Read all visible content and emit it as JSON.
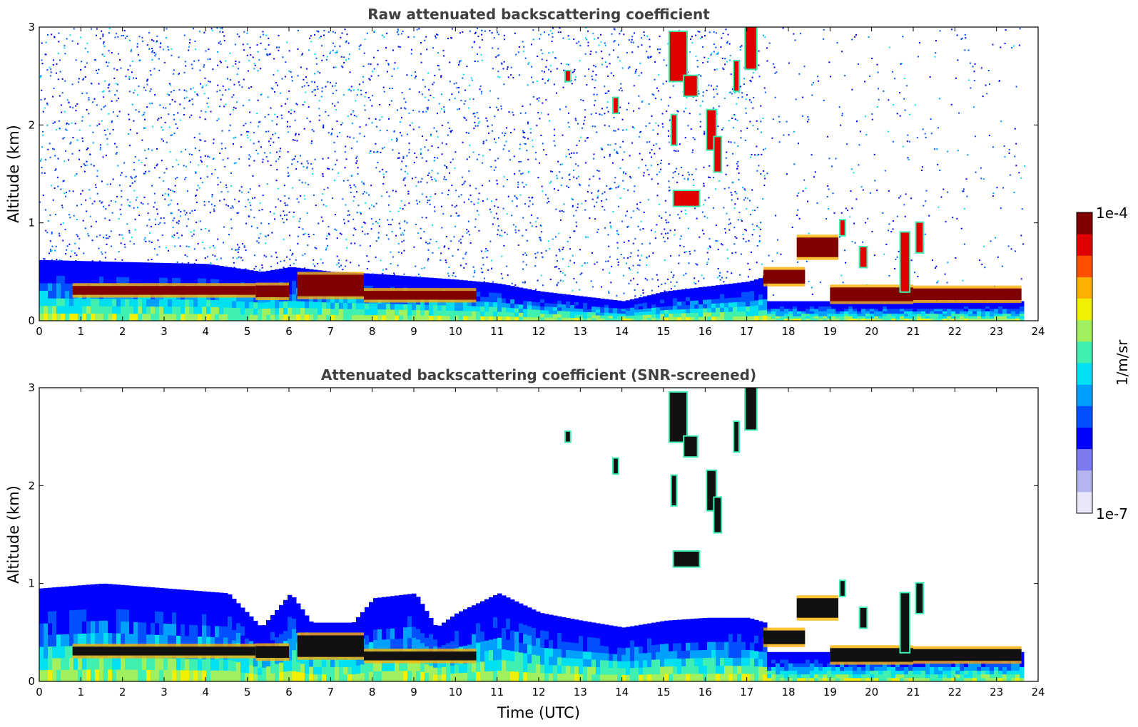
{
  "chart_data": [
    {
      "type": "heatmap",
      "title": "Raw attenuated backscattering coefficient",
      "xlabel": "",
      "ylabel": "Altitude (km)",
      "xlim": [
        0,
        24
      ],
      "ylim": [
        0,
        3
      ],
      "xticks": [
        "0",
        "1",
        "2",
        "3",
        "4",
        "5",
        "6",
        "7",
        "8",
        "9",
        "10",
        "11",
        "12",
        "13",
        "14",
        "15",
        "16",
        "17",
        "18",
        "19",
        "20",
        "21",
        "22",
        "23",
        "24"
      ],
      "yticks": [
        "0",
        "1",
        "2",
        "3"
      ],
      "screened": false,
      "data_end_hour": 23.6,
      "aerosol_layer_top_km": [
        [
          0,
          0.62
        ],
        [
          2,
          0.6
        ],
        [
          4,
          0.58
        ],
        [
          5.3,
          0.5
        ],
        [
          6,
          0.55
        ],
        [
          7,
          0.5
        ],
        [
          8,
          0.48
        ],
        [
          9,
          0.45
        ],
        [
          10,
          0.42
        ],
        [
          11,
          0.38
        ],
        [
          12,
          0.3
        ],
        [
          13,
          0.25
        ],
        [
          14,
          0.2
        ],
        [
          15,
          0.3
        ],
        [
          16,
          0.35
        ],
        [
          17,
          0.4
        ],
        [
          17.4,
          0.45
        ]
      ],
      "strong_layers": [
        {
          "t0": 0.8,
          "t1": 5.2,
          "alt_km": 0.31,
          "thick_km": 0.09
        },
        {
          "t0": 5.2,
          "t1": 6.0,
          "alt_km": 0.3,
          "thick_km": 0.12
        },
        {
          "t0": 6.2,
          "t1": 7.8,
          "alt_km": 0.36,
          "thick_km": 0.22
        },
        {
          "t0": 7.8,
          "t1": 10.5,
          "alt_km": 0.26,
          "thick_km": 0.09
        },
        {
          "t0": 17.4,
          "t1": 18.4,
          "alt_km": 0.45,
          "thick_km": 0.14
        },
        {
          "t0": 18.2,
          "t1": 19.2,
          "alt_km": 0.75,
          "thick_km": 0.2
        },
        {
          "t0": 19.0,
          "t1": 21.0,
          "alt_km": 0.27,
          "thick_km": 0.14
        },
        {
          "t0": 21.0,
          "t1": 23.6,
          "alt_km": 0.27,
          "thick_km": 0.12
        }
      ],
      "cloud_patches": [
        {
          "t": 15.35,
          "alt_km": 2.7,
          "w": 0.4,
          "h": 0.5
        },
        {
          "t": 15.65,
          "alt_km": 2.4,
          "w": 0.3,
          "h": 0.2
        },
        {
          "t": 16.15,
          "alt_km": 1.95,
          "w": 0.2,
          "h": 0.4
        },
        {
          "t": 16.3,
          "alt_km": 1.7,
          "w": 0.15,
          "h": 0.35
        },
        {
          "t": 15.55,
          "alt_km": 1.25,
          "w": 0.6,
          "h": 0.15
        },
        {
          "t": 15.25,
          "alt_km": 1.95,
          "w": 0.1,
          "h": 0.3
        },
        {
          "t": 16.75,
          "alt_km": 2.5,
          "w": 0.1,
          "h": 0.3
        },
        {
          "t": 17.1,
          "alt_km": 2.8,
          "w": 0.25,
          "h": 0.45
        },
        {
          "t": 12.7,
          "alt_km": 2.5,
          "w": 0.1,
          "h": 0.1
        },
        {
          "t": 13.85,
          "alt_km": 2.2,
          "w": 0.1,
          "h": 0.15
        },
        {
          "t": 19.3,
          "alt_km": 0.95,
          "w": 0.1,
          "h": 0.15
        },
        {
          "t": 20.8,
          "alt_km": 0.6,
          "w": 0.2,
          "h": 0.6
        },
        {
          "t": 21.15,
          "alt_km": 0.85,
          "w": 0.15,
          "h": 0.3
        },
        {
          "t": 19.8,
          "alt_km": 0.65,
          "w": 0.15,
          "h": 0.2
        }
      ]
    },
    {
      "type": "heatmap",
      "title": "Attenuated backscattering coefficient (SNR-screened)",
      "xlabel": "Time (UTC)",
      "ylabel": "Altitude (km)",
      "xlim": [
        0,
        24
      ],
      "ylim": [
        0,
        3
      ],
      "xticks": [
        "0",
        "1",
        "2",
        "3",
        "4",
        "5",
        "6",
        "7",
        "8",
        "9",
        "10",
        "11",
        "12",
        "13",
        "14",
        "15",
        "16",
        "17",
        "18",
        "19",
        "20",
        "21",
        "22",
        "23",
        "24"
      ],
      "yticks": [
        "0",
        "1",
        "2",
        "3"
      ],
      "screened": true,
      "data_end_hour": 23.6,
      "screened_top_km": [
        [
          0,
          0.95
        ],
        [
          1.5,
          1.0
        ],
        [
          3,
          0.95
        ],
        [
          4.5,
          0.9
        ],
        [
          5.3,
          0.55
        ],
        [
          6,
          0.9
        ],
        [
          6.5,
          0.6
        ],
        [
          7.5,
          0.6
        ],
        [
          8,
          0.85
        ],
        [
          9,
          0.9
        ],
        [
          9.5,
          0.55
        ],
        [
          10,
          0.7
        ],
        [
          11,
          0.9
        ],
        [
          12,
          0.7
        ],
        [
          13,
          0.62
        ],
        [
          14,
          0.55
        ],
        [
          15,
          0.62
        ],
        [
          16,
          0.65
        ],
        [
          17,
          0.65
        ],
        [
          17.4,
          0.6
        ]
      ]
    }
  ],
  "colorbar": {
    "label": "1/m/sr",
    "max_label": "1e-4",
    "min_label": "1e-7",
    "scale": "log",
    "colors": [
      "#e8e8f8",
      "#b4b4ee",
      "#7a7aee",
      "#0000ff",
      "#0050ff",
      "#00a0ff",
      "#00e0f0",
      "#40f0b0",
      "#a0f060",
      "#f0f000",
      "#ffb000",
      "#ff5000",
      "#e00000",
      "#800000"
    ]
  }
}
